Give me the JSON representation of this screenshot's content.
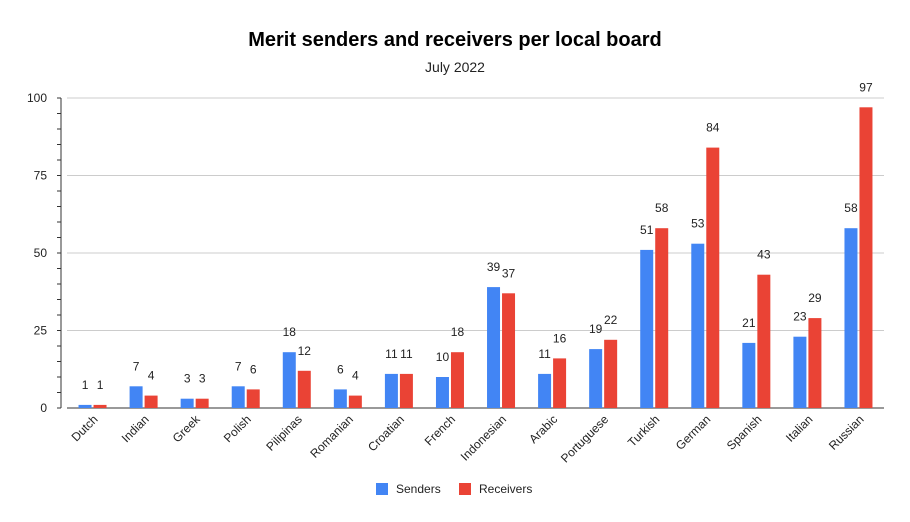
{
  "chart_data": {
    "type": "bar",
    "title": "Merit senders and receivers per local board",
    "subtitle": "July 2022",
    "xlabel": "",
    "ylabel": "",
    "ylim": [
      0,
      100
    ],
    "yticks": [
      0,
      25,
      50,
      75,
      100
    ],
    "grid": true,
    "legend_position": "bottom",
    "categories": [
      "Dutch",
      "Indian",
      "Greek",
      "Polish",
      "Pilipinas",
      "Romanian",
      "Croatian",
      "French",
      "Indonesian",
      "Arabic",
      "Portuguese",
      "Turkish",
      "German",
      "Spanish",
      "Italian",
      "Russian"
    ],
    "series": [
      {
        "name": "Senders",
        "color": "#4285f4",
        "values": [
          1,
          7,
          3,
          7,
          18,
          6,
          11,
          10,
          39,
          11,
          19,
          51,
          53,
          21,
          23,
          58
        ]
      },
      {
        "name": "Receivers",
        "color": "#ea4335",
        "values": [
          1,
          4,
          3,
          6,
          12,
          4,
          11,
          18,
          37,
          16,
          22,
          58,
          84,
          43,
          29,
          97
        ]
      }
    ]
  }
}
